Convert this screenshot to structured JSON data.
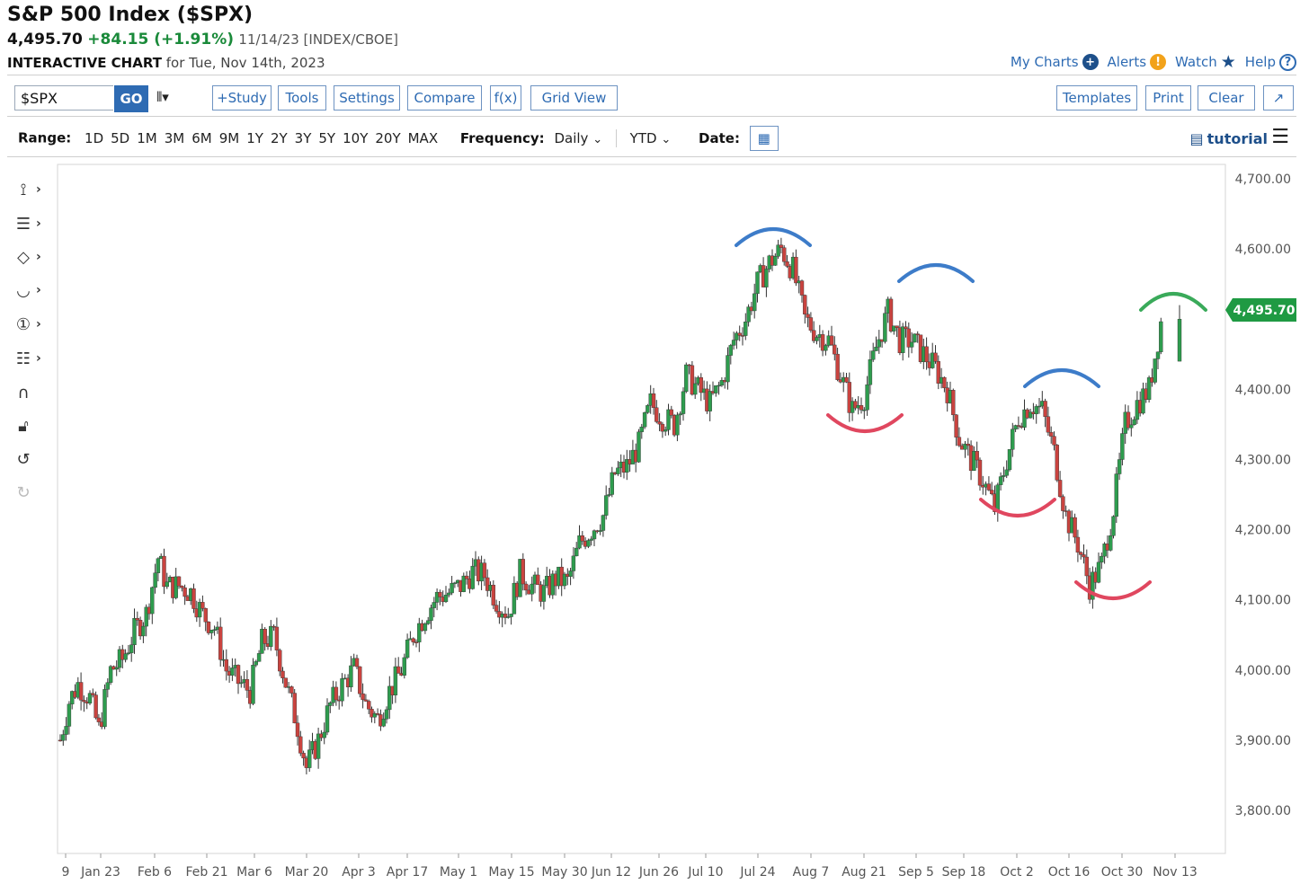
{
  "header": {
    "title": "S&P 500 Index ($SPX)",
    "last": "4,495.70",
    "change": "+84.15 (+1.91%)",
    "meta": "11/14/23 [INDEX/CBOE]",
    "subtitle_bold": "INTERACTIVE CHART",
    "subtitle_rest": "for Tue, Nov 14th, 2023"
  },
  "top_links": {
    "my_charts": "My Charts",
    "alerts": "Alerts",
    "watch": "Watch",
    "help": "Help"
  },
  "toolbar": {
    "symbol_value": "$SPX",
    "go": "GO",
    "study": "+Study",
    "tools": "Tools",
    "settings": "Settings",
    "compare": "Compare",
    "fx": "f(x)",
    "grid_view": "Grid View",
    "templates": "Templates",
    "print": "Print",
    "clear": "Clear"
  },
  "range_bar": {
    "range_label": "Range:",
    "ranges": [
      "1D",
      "5D",
      "1M",
      "3M",
      "6M",
      "9M",
      "1Y",
      "2Y",
      "3Y",
      "5Y",
      "10Y",
      "20Y",
      "MAX"
    ],
    "frequency_label": "Frequency:",
    "frequency_value": "Daily",
    "period_value": "YTD",
    "date_label": "Date:",
    "tutorial": "tutorial"
  },
  "colors": {
    "up": "#2e9c4e",
    "down": "#c9433f",
    "link": "#2e6bb3",
    "arc_blue": "#3d7cc9",
    "arc_red": "#e0475f",
    "arc_green": "#3aaa5a",
    "price_tag": "#1f9a43"
  },
  "chart_data": {
    "type": "candlestick",
    "current_price_label": "4,495.70",
    "y_ticks": [
      "4,700.00",
      "4,600.00",
      "4,400.00",
      "4,300.00",
      "4,200.00",
      "4,100.00",
      "4,000.00",
      "3,900.00",
      "3,800.00"
    ],
    "x_ticks": [
      "9",
      "Jan 23",
      "Feb 6",
      "Feb 21",
      "Mar 6",
      "Mar 20",
      "Apr 3",
      "Apr 17",
      "May 1",
      "May 15",
      "May 30",
      "Jun 12",
      "Jun 26",
      "Jul 10",
      "Jul 24",
      "Aug 7",
      "Aug 21",
      "Sep 5",
      "Sep 18",
      "Oct 2",
      "Oct 16",
      "Oct 30",
      "Nov 13"
    ],
    "ylim": [
      3780,
      4720
    ],
    "close_path": [
      [
        0,
        3900
      ],
      [
        3,
        3955
      ],
      [
        6,
        3980
      ],
      [
        10,
        3960
      ],
      [
        13,
        3915
      ],
      [
        17,
        3999
      ],
      [
        21,
        4015
      ],
      [
        25,
        4055
      ],
      [
        29,
        4080
      ],
      [
        33,
        4160
      ],
      [
        36,
        4119
      ],
      [
        40,
        4120
      ],
      [
        44,
        4111
      ],
      [
        48,
        4079
      ],
      [
        52,
        4060
      ],
      [
        56,
        4000
      ],
      [
        60,
        3983
      ],
      [
        64,
        3970
      ],
      [
        68,
        4040
      ],
      [
        72,
        4048
      ],
      [
        76,
        3982
      ],
      [
        80,
        3920
      ],
      [
        83,
        3861
      ],
      [
        87,
        3900
      ],
      [
        91,
        3950
      ],
      [
        95,
        3978
      ],
      [
        99,
        4002
      ],
      [
        103,
        3951
      ],
      [
        107,
        3930
      ],
      [
        111,
        3970
      ],
      [
        115,
        4000
      ],
      [
        119,
        4050
      ],
      [
        123,
        4080
      ],
      [
        127,
        4104
      ],
      [
        131,
        4110
      ],
      [
        135,
        4120
      ],
      [
        139,
        4140
      ],
      [
        143,
        4135
      ],
      [
        147,
        4100
      ],
      [
        151,
        4080
      ],
      [
        155,
        4138
      ],
      [
        159,
        4120
      ],
      [
        163,
        4110
      ],
      [
        167,
        4130
      ],
      [
        171,
        4125
      ],
      [
        175,
        4180
      ],
      [
        179,
        4200
      ],
      [
        183,
        4220
      ],
      [
        187,
        4280
      ],
      [
        191,
        4290
      ],
      [
        195,
        4320
      ],
      [
        199,
        4380
      ],
      [
        203,
        4360
      ],
      [
        207,
        4350
      ],
      [
        211,
        4420
      ],
      [
        215,
        4400
      ],
      [
        219,
        4380
      ],
      [
        223,
        4410
      ],
      [
        227,
        4470
      ],
      [
        231,
        4500
      ],
      [
        235,
        4550
      ],
      [
        239,
        4580
      ],
      [
        243,
        4600
      ],
      [
        247,
        4570
      ],
      [
        251,
        4500
      ],
      [
        255,
        4480
      ],
      [
        259,
        4470
      ],
      [
        263,
        4420
      ],
      [
        267,
        4370
      ],
      [
        271,
        4390
      ],
      [
        275,
        4460
      ],
      [
        279,
        4510
      ],
      [
        283,
        4470
      ],
      [
        287,
        4470
      ],
      [
        291,
        4450
      ],
      [
        295,
        4430
      ],
      [
        299,
        4400
      ],
      [
        303,
        4330
      ],
      [
        307,
        4300
      ],
      [
        311,
        4270
      ],
      [
        315,
        4230
      ],
      [
        319,
        4300
      ],
      [
        323,
        4360
      ],
      [
        327,
        4380
      ],
      [
        331,
        4370
      ],
      [
        335,
        4310
      ],
      [
        339,
        4220
      ],
      [
        343,
        4180
      ],
      [
        347,
        4120
      ],
      [
        351,
        4150
      ],
      [
        355,
        4230
      ],
      [
        359,
        4350
      ],
      [
        363,
        4380
      ],
      [
        367,
        4400
      ],
      [
        371,
        4495.7
      ]
    ]
  }
}
